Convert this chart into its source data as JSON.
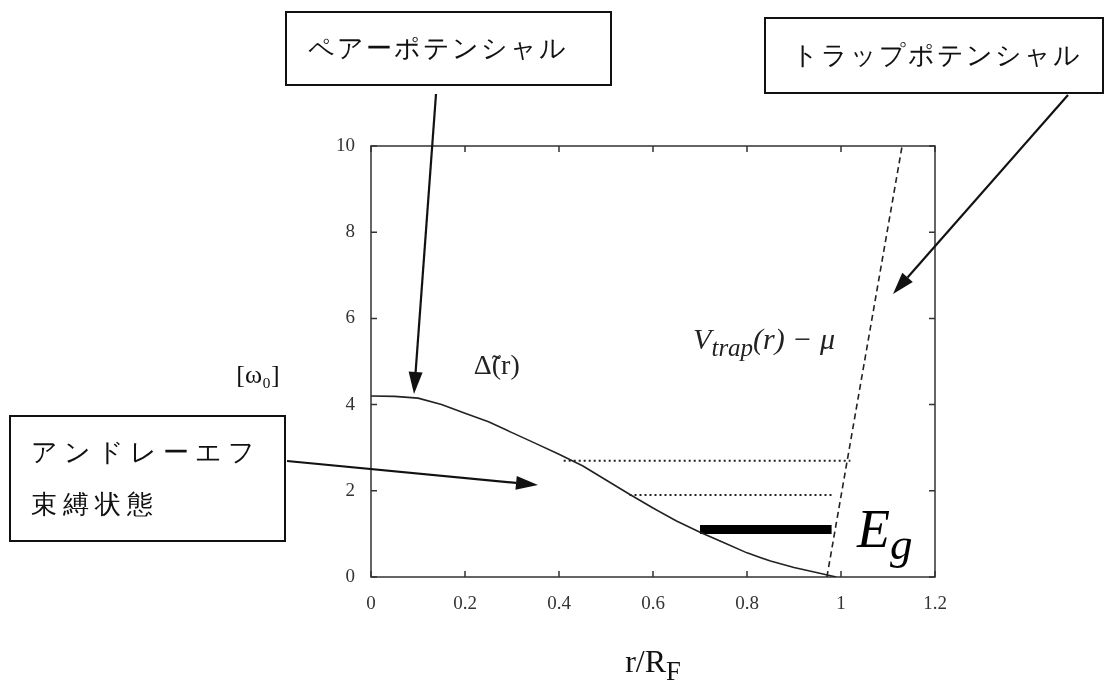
{
  "chart_data": {
    "type": "line",
    "xlabel": "r/R$_{F}$",
    "ylabel": "[ω₀]",
    "xlim": [
      0,
      1.2
    ],
    "xticks": [
      0,
      0.2,
      0.4,
      0.6,
      0.8,
      1,
      1.2
    ],
    "ylim": [
      0,
      10
    ],
    "yticks": [
      0,
      2,
      4,
      6,
      8,
      10
    ],
    "series": [
      {
        "name": "Δ̃(r)",
        "color": "#222222",
        "x": [
          0,
          0.05,
          0.1,
          0.15,
          0.2,
          0.25,
          0.3,
          0.35,
          0.4,
          0.45,
          0.5,
          0.55,
          0.6,
          0.65,
          0.7,
          0.75,
          0.8,
          0.85,
          0.9,
          0.95,
          0.99
        ],
        "values": [
          4.2,
          4.19,
          4.15,
          4.0,
          3.8,
          3.6,
          3.35,
          3.1,
          2.85,
          2.58,
          2.25,
          1.92,
          1.6,
          1.3,
          1.04,
          0.8,
          0.56,
          0.37,
          0.22,
          0.1,
          0
        ]
      },
      {
        "name": "V$_{trap}$(r) − μ",
        "color": "#222222",
        "line_style": "dashed",
        "x": [
          0.97,
          1.13
        ],
        "values": [
          0,
          10
        ]
      },
      {
        "color": "#222222",
        "line_style": "dotted",
        "x": [
          0.41,
          1.02
        ],
        "values": [
          2.7,
          2.7
        ]
      },
      {
        "color": "#222222",
        "line_style": "dotted",
        "x": [
          0.55,
          0.98
        ],
        "values": [
          1.9,
          1.9
        ]
      },
      {
        "name": "E$_{g}$",
        "color": "#000000",
        "x": [
          0.7,
          0.98
        ],
        "values": [
          1.1,
          1.1
        ]
      }
    ],
    "annotations": [
      "ペアーポテンシャル",
      "トラップポテンシャル",
      "アンドレーエフ束縛状態"
    ]
  }
}
